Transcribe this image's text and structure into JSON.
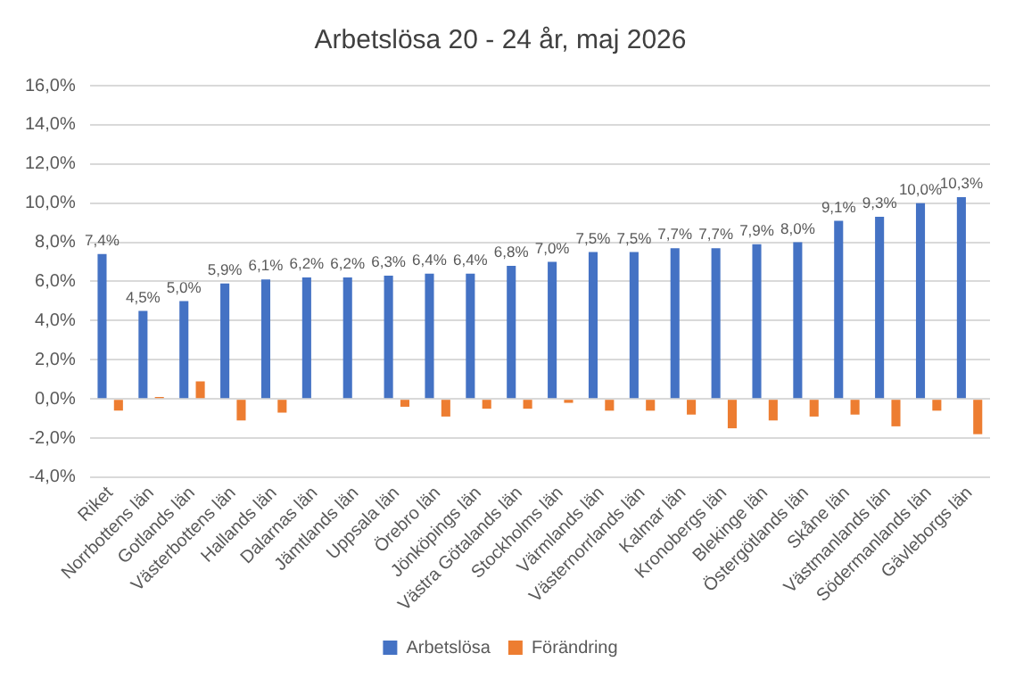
{
  "chart_data": {
    "type": "bar",
    "title": "Arbetslösa 20 - 24 år, maj 2026",
    "categories": [
      "Riket",
      "Norrbottens län",
      "Gotlands län",
      "Västerbottens län",
      "Hallands län",
      "Dalarnas län",
      "Jämtlands län",
      "Uppsala län",
      "Örebro län",
      "Jönköpings län",
      "Västra Götalands län",
      "Stockholms län",
      "Värmlands län",
      "Västernorrlands län",
      "Kalmar län",
      "Kronobergs län",
      "Blekinge län",
      "Östergötlands län",
      "Skåne län",
      "Västmanlands län",
      "Södermanlands län",
      "Gävleborgs län"
    ],
    "series": [
      {
        "name": "Arbetslösa",
        "color": "#4472c4",
        "values": [
          7.4,
          4.5,
          5.0,
          5.9,
          6.1,
          6.2,
          6.2,
          6.3,
          6.4,
          6.4,
          6.8,
          7.0,
          7.5,
          7.5,
          7.7,
          7.7,
          7.9,
          8.0,
          9.1,
          9.3,
          10.0,
          10.3
        ],
        "value_labels": [
          "7,4%",
          "4,5%",
          "5,0%",
          "5,9%",
          "6,1%",
          "6,2%",
          "6,2%",
          "6,3%",
          "6,4%",
          "6,4%",
          "6,8%",
          "7,0%",
          "7,5%",
          "7,5%",
          "7,7%",
          "7,7%",
          "7,9%",
          "8,0%",
          "9,1%",
          "9,3%",
          "10,0%",
          "10,3%"
        ]
      },
      {
        "name": "Förändring",
        "color": "#ed7d31",
        "values": [
          -0.6,
          0.1,
          0.9,
          -1.1,
          -0.7,
          0,
          0,
          -0.4,
          -0.9,
          -0.5,
          -0.5,
          -0.2,
          -0.6,
          -0.6,
          -0.8,
          -1.5,
          -1.1,
          -0.9,
          -0.8,
          -1.4,
          -0.6,
          -1.8
        ]
      }
    ],
    "ylim": [
      -4,
      16
    ],
    "yticks": [
      {
        "value": -4,
        "label": "-4,0%"
      },
      {
        "value": -2,
        "label": "-2,0%"
      },
      {
        "value": 0,
        "label": "0,0%"
      },
      {
        "value": 2,
        "label": "2,0%"
      },
      {
        "value": 4,
        "label": "4,0%"
      },
      {
        "value": 6,
        "label": "6,0%"
      },
      {
        "value": 8,
        "label": "8,0%"
      },
      {
        "value": 10,
        "label": "10,0%"
      },
      {
        "value": 12,
        "label": "12,0%"
      },
      {
        "value": 14,
        "label": "14,0%"
      },
      {
        "value": 16,
        "label": "16,0%"
      }
    ],
    "grid": "y",
    "legend": "bottom"
  }
}
